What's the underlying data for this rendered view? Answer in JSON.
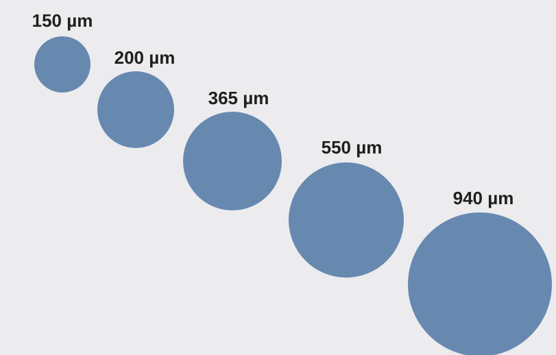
{
  "colors": {
    "background": "#ecebee",
    "circle": "#6789b0",
    "label": "#1f1f1f"
  },
  "unit": "µm",
  "sizes": [
    {
      "value": 150,
      "label": "150 µm"
    },
    {
      "value": 200,
      "label": "200 µm"
    },
    {
      "value": 365,
      "label": "365 µm"
    },
    {
      "value": 550,
      "label": "550 µm"
    },
    {
      "value": 940,
      "label": "940 µm"
    }
  ]
}
